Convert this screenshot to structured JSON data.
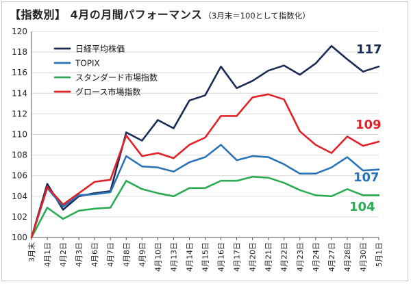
{
  "chart_data": {
    "type": "line",
    "title": "【指数別】 4月の月間パフォーマンス",
    "subtitle": "（3月末＝100として指数化）",
    "xlabel": "",
    "ylabel": "",
    "ylim": [
      100,
      120
    ],
    "yticks": [
      100,
      102,
      104,
      106,
      108,
      110,
      112,
      114,
      116,
      118,
      120
    ],
    "grid": "horizontal",
    "legend_position": "top-left",
    "categories": [
      "3月末",
      "4月1日",
      "4月2日",
      "4月3日",
      "4月6日",
      "4月7日",
      "4月8日",
      "4月9日",
      "4月10日",
      "4月13日",
      "4月14日",
      "4月15日",
      "4月16日",
      "4月17日",
      "4月20日",
      "4月21日",
      "4月22日",
      "4月23日",
      "4月24日",
      "4月27日",
      "4月28日",
      "4月30日",
      "5月1日"
    ],
    "series": [
      {
        "name": "日経平均株価",
        "color": "#1b2a55",
        "end_label": "117",
        "values": [
          100,
          105.2,
          102.7,
          104.0,
          104.3,
          104.5,
          110.2,
          109.4,
          111.4,
          110.6,
          113.3,
          113.8,
          116.6,
          114.5,
          115.2,
          116.2,
          116.7,
          115.8,
          116.9,
          118.6,
          117.3,
          116.1,
          116.6
        ]
      },
      {
        "name": "TOPIX",
        "color": "#2a73b6",
        "end_label": "107",
        "values": [
          100,
          104.8,
          103.0,
          104.1,
          104.2,
          104.4,
          107.9,
          106.9,
          106.8,
          106.4,
          107.3,
          107.8,
          109.0,
          107.5,
          107.9,
          107.8,
          107.1,
          106.2,
          106.2,
          106.8,
          107.8,
          106.5,
          106.6
        ]
      },
      {
        "name": "スタンダード市場指数",
        "color": "#2bab53",
        "end_label": "104",
        "values": [
          100,
          102.9,
          101.8,
          102.6,
          102.8,
          102.9,
          105.5,
          104.7,
          104.3,
          104.0,
          104.8,
          104.8,
          105.5,
          105.5,
          105.9,
          105.8,
          105.3,
          104.6,
          104.1,
          104.0,
          104.7,
          104.1,
          104.1
        ]
      },
      {
        "name": "グロース市場指数",
        "color": "#e02127",
        "end_label": "109",
        "values": [
          100,
          104.9,
          103.2,
          104.3,
          105.4,
          105.6,
          109.9,
          107.9,
          108.2,
          107.7,
          109.0,
          109.7,
          111.8,
          111.8,
          113.6,
          113.9,
          113.4,
          110.3,
          109.0,
          108.2,
          109.8,
          108.9,
          109.3
        ]
      }
    ]
  }
}
